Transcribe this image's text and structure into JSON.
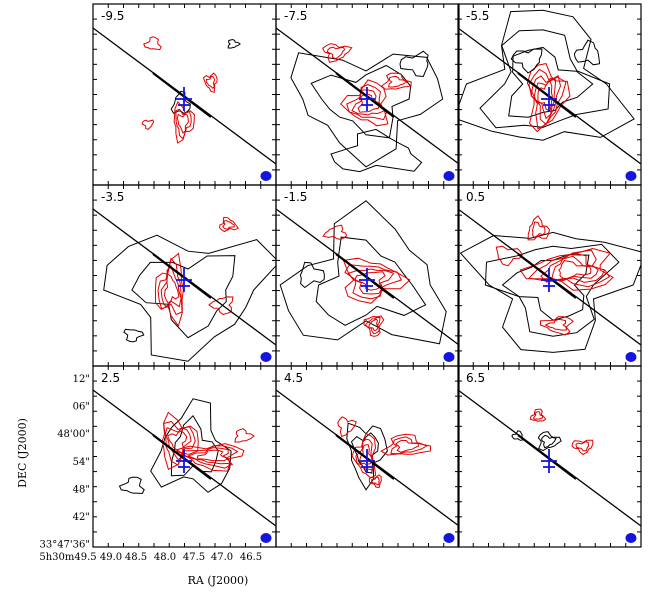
{
  "chart_data": {
    "type": "contour-channel-maps",
    "xlabel": "RA (J2000)",
    "ylabel": "DEC (J2000)",
    "x_ticks": [
      "5h30m49.5",
      "49.0",
      "48.5",
      "48.0",
      "47.5",
      "47.0",
      "46.5"
    ],
    "y_ticks": [
      "12\"",
      "06\"",
      "48'00\"",
      "54\"",
      "48\"",
      "42\"",
      "33°47'36\""
    ],
    "channels": [
      {
        "velocity": "-9.5"
      },
      {
        "velocity": "-7.5"
      },
      {
        "velocity": "-5.5"
      },
      {
        "velocity": "-3.5"
      },
      {
        "velocity": "-1.5"
      },
      {
        "velocity": "0.5"
      },
      {
        "velocity": "2.5"
      },
      {
        "velocity": "4.5"
      },
      {
        "velocity": "6.5"
      }
    ],
    "contour_colors": {
      "black": "#000000",
      "red": "#e00000"
    },
    "marker_color": "#1515e0",
    "marker_icon": "cross",
    "beam_icon": "filled-ellipse"
  }
}
